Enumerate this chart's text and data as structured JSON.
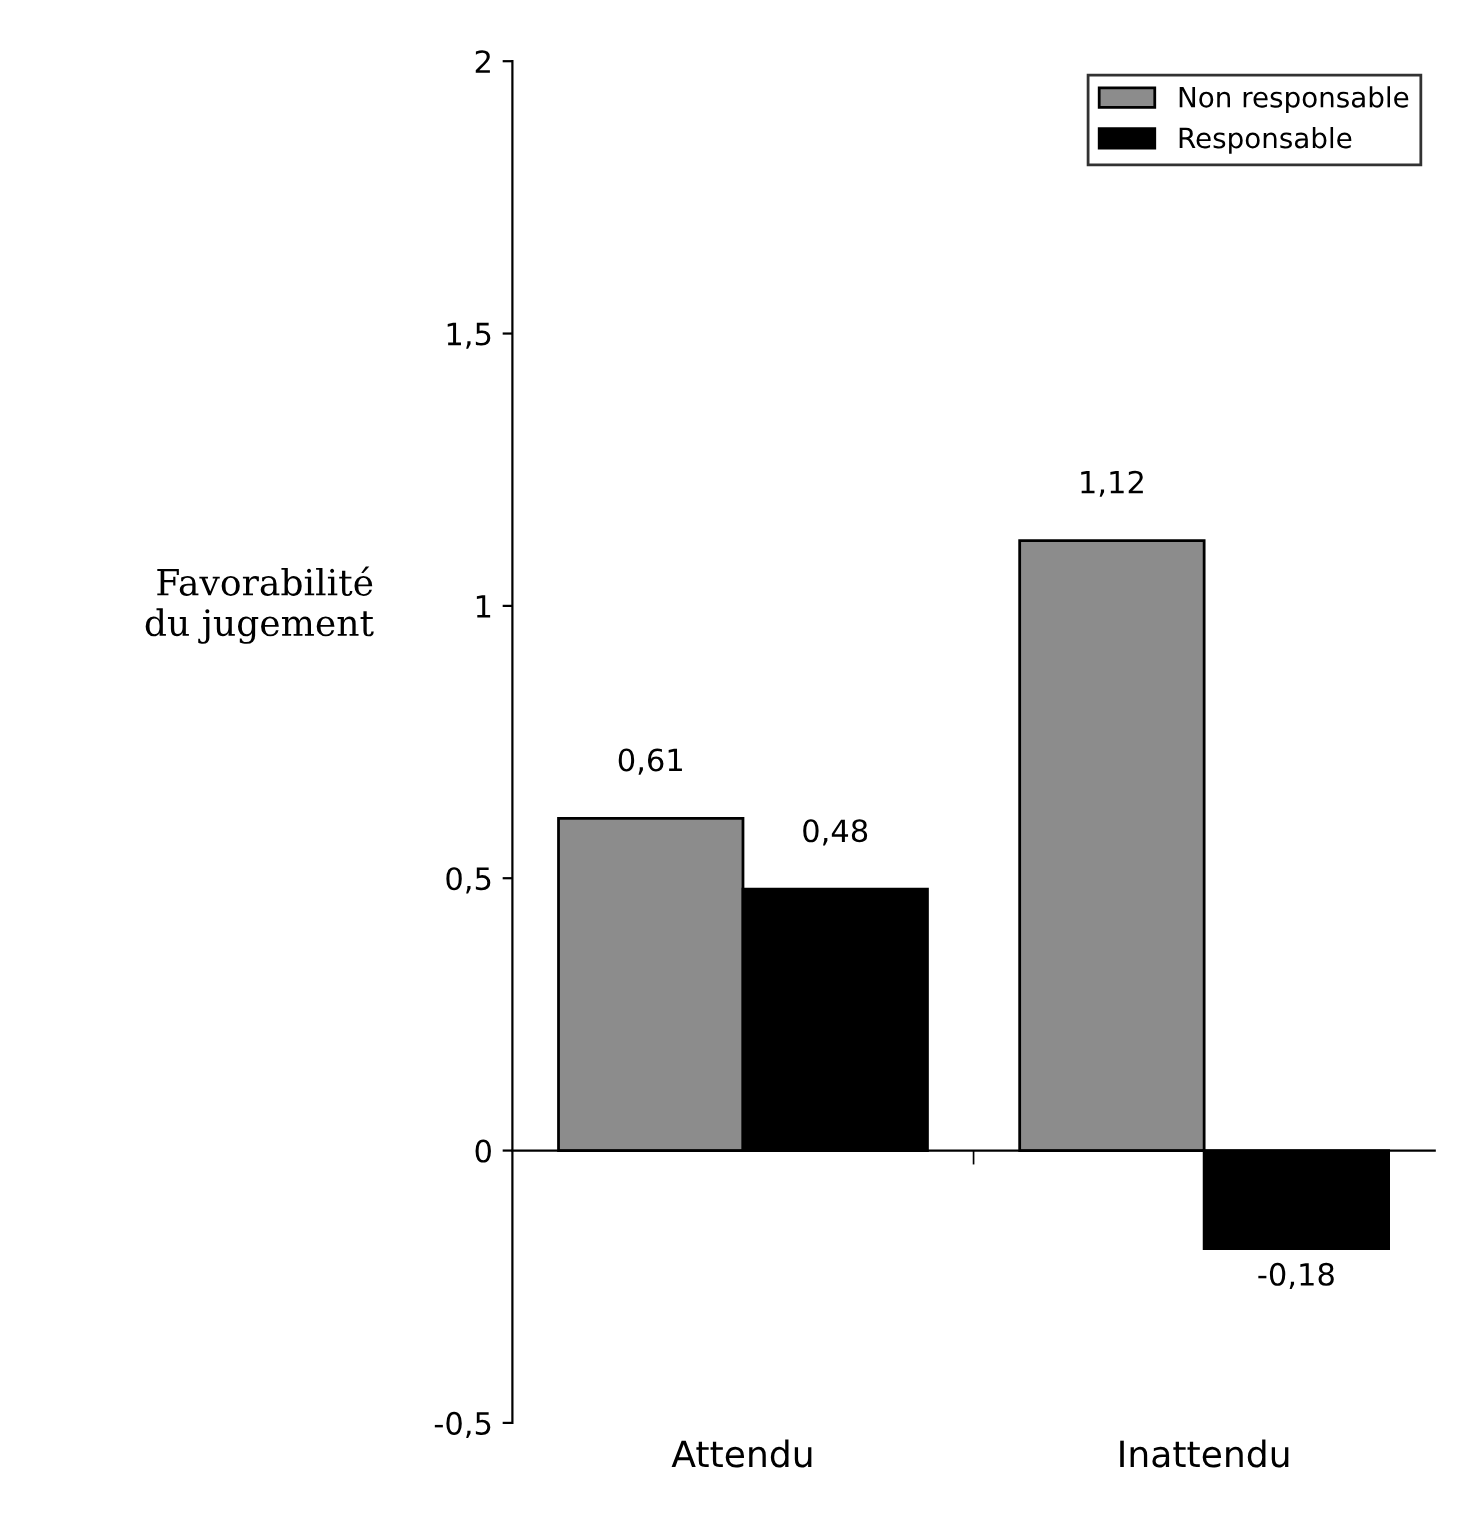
{
  "chart_data": {
    "type": "bar",
    "ylabel": "Favorabilité\ndu jugement",
    "categories": [
      "Attendu",
      "Inattendu"
    ],
    "series": [
      {
        "name": "Non responsable",
        "color": "#8c8c8c",
        "values": [
          0.61,
          1.12
        ],
        "value_labels": [
          "0,61",
          "1,12"
        ]
      },
      {
        "name": "Responsable",
        "color": "#000000",
        "values": [
          0.48,
          -0.18
        ],
        "value_labels": [
          "0,48",
          "-0,18"
        ]
      }
    ],
    "ylim": [
      -0.5,
      2
    ],
    "yticks": [
      {
        "value": -0.5,
        "label": "-0,5"
      },
      0,
      {
        "value": 0.5,
        "label": "0,5"
      },
      1,
      {
        "value": 1.5,
        "label": "1,5"
      },
      2
    ],
    "legend": "top right"
  }
}
